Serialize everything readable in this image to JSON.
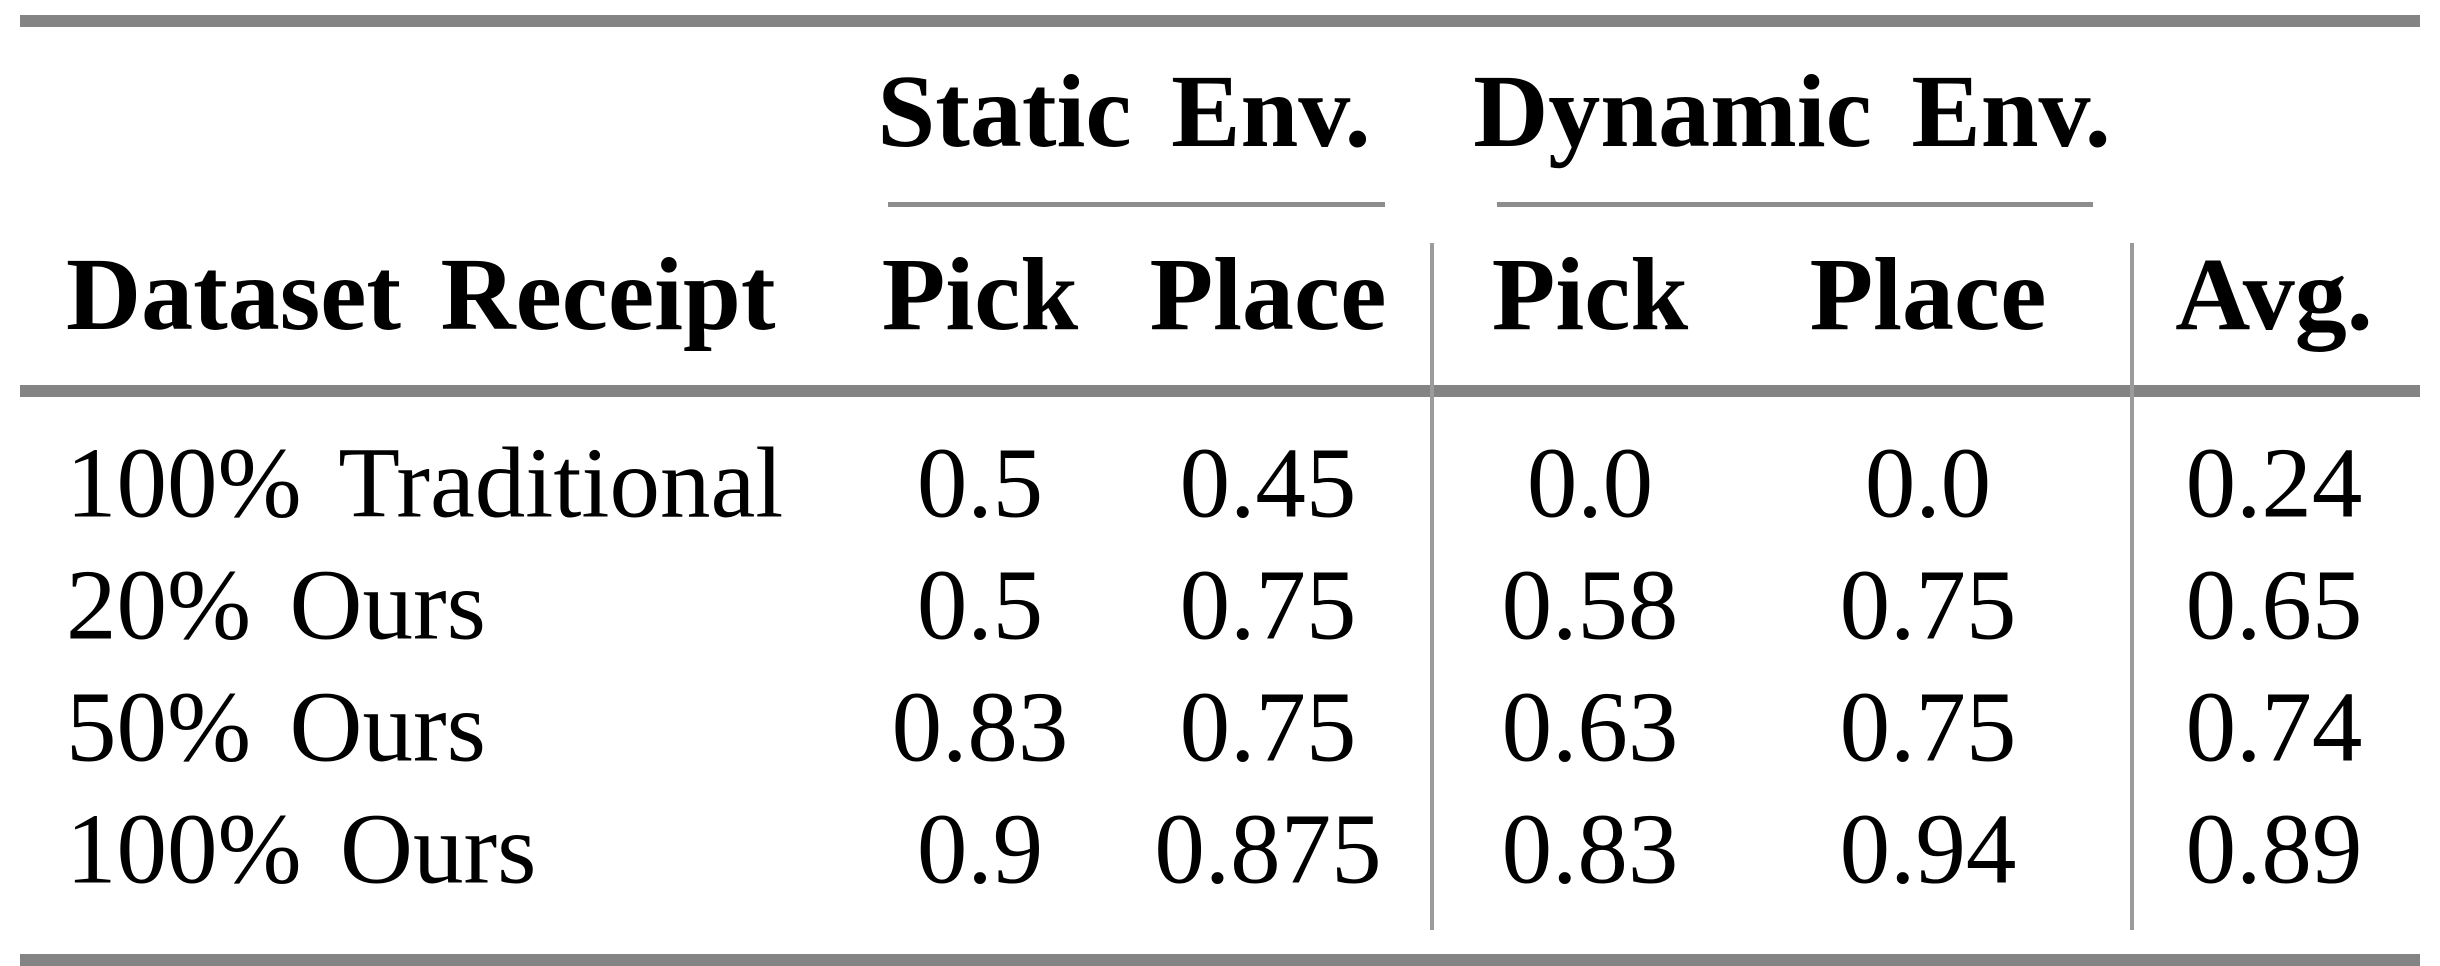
{
  "colors": {
    "background": "#ffffff",
    "text": "#000000",
    "rule_thick": "#848484",
    "rule_thin": "#8d8d8d",
    "rule_vertical": "#9b9b9b"
  },
  "table": {
    "column_groups": {
      "static": "Static Env.",
      "dynamic": "Dynamic Env."
    },
    "headers": {
      "row_label": "Dataset Receipt",
      "static_pick": "Pick",
      "static_place": "Place",
      "dynamic_pick": "Pick",
      "dynamic_place": "Place",
      "avg": "Avg."
    },
    "rows": [
      {
        "label": "100% Traditional",
        "static_pick": "0.5",
        "static_place": "0.45",
        "dynamic_pick": "0.0",
        "dynamic_place": "0.0",
        "avg": "0.24"
      },
      {
        "label": "20% Ours",
        "static_pick": "0.5",
        "static_place": "0.75",
        "dynamic_pick": "0.58",
        "dynamic_place": "0.75",
        "avg": "0.65"
      },
      {
        "label": "50% Ours",
        "static_pick": "0.83",
        "static_place": "0.75",
        "dynamic_pick": "0.63",
        "dynamic_place": "0.75",
        "avg": "0.74"
      },
      {
        "label": "100% Ours",
        "static_pick": "0.9",
        "static_place": "0.875",
        "dynamic_pick": "0.83",
        "dynamic_place": "0.94",
        "avg": "0.89"
      }
    ]
  }
}
